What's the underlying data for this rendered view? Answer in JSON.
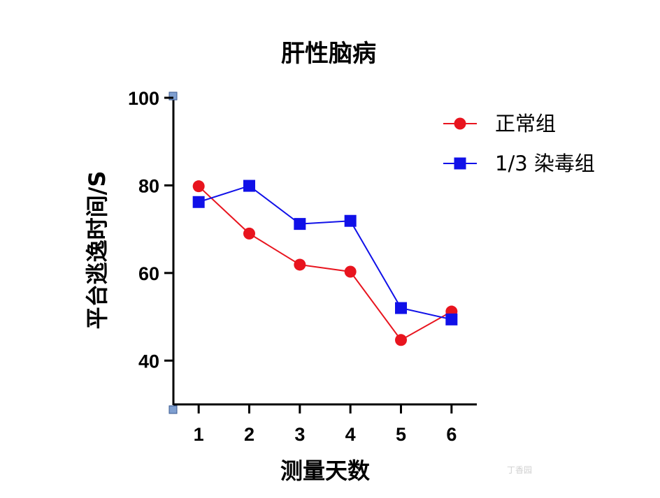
{
  "chart_data": {
    "type": "line",
    "title": "肝性脑病",
    "xlabel": "测量天数",
    "ylabel": "平台逃逸时间/S",
    "x": [
      1,
      2,
      3,
      4,
      5,
      6
    ],
    "x_ticks": [
      "1",
      "2",
      "3",
      "4",
      "5",
      "6"
    ],
    "xlim": [
      0.5,
      6.5
    ],
    "ylim": [
      30,
      100
    ],
    "y_ticks": [
      "40",
      "60",
      "80",
      "100"
    ],
    "grid": false,
    "legend_position": "top-right",
    "series": [
      {
        "name": "正常组",
        "color": "#e8141e",
        "marker": "circle",
        "values": [
          79.8,
          69.0,
          61.9,
          60.3,
          44.7,
          51.2
        ]
      },
      {
        "name": "1/3 染毒组",
        "color": "#1010e8",
        "marker": "square",
        "values": [
          76.2,
          79.9,
          71.2,
          71.9,
          52.0,
          49.4
        ]
      }
    ]
  },
  "watermark": {
    "text": "丁香园"
  }
}
